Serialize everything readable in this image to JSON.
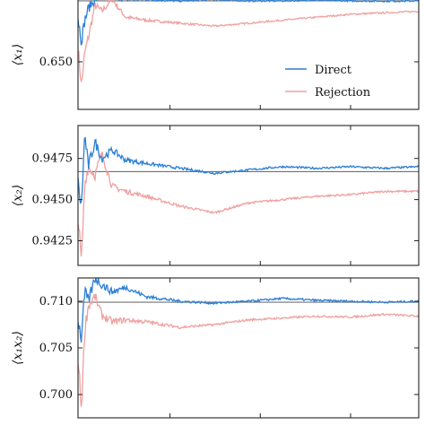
{
  "colors": {
    "direct": "#2b7fd6",
    "rejection": "#f0a0a0",
    "reference": "#707070",
    "axes": "#222222"
  },
  "legend": {
    "direct": "Direct",
    "rejection": "Rejection",
    "placement": "lower-right of top panel"
  },
  "chart_data": [
    {
      "type": "line",
      "ylabel": "⟨x₁⟩",
      "yticks": [
        {
          "v": 0.65,
          "label": "0.650"
        }
      ],
      "ylim": [
        0.634,
        0.672
      ],
      "reference_value": 0.6705,
      "x_domain": [
        0,
        1
      ],
      "series": [
        {
          "name": "Direct",
          "x": [
            0,
            0.01,
            0.02,
            0.03,
            0.05,
            0.07,
            0.1,
            0.14,
            0.2,
            0.3,
            0.4,
            0.5,
            0.6,
            0.7,
            0.8,
            0.9,
            1.0
          ],
          "values": [
            0.665,
            0.657,
            0.664,
            0.668,
            0.671,
            0.672,
            0.672,
            0.671,
            0.671,
            0.6705,
            0.671,
            0.6705,
            0.6705,
            0.6708,
            0.6705,
            0.6704,
            0.6705
          ]
        },
        {
          "name": "Rejection",
          "x": [
            0,
            0.01,
            0.02,
            0.03,
            0.05,
            0.07,
            0.1,
            0.14,
            0.2,
            0.3,
            0.4,
            0.5,
            0.6,
            0.7,
            0.8,
            0.9,
            1.0
          ],
          "values": [
            0.655,
            0.642,
            0.653,
            0.658,
            0.669,
            0.667,
            0.671,
            0.665,
            0.664,
            0.663,
            0.662,
            0.663,
            0.664,
            0.665,
            0.666,
            0.6665,
            0.667
          ]
        }
      ]
    },
    {
      "type": "line",
      "ylabel": "⟨x₂⟩",
      "yticks": [
        {
          "v": 0.9475,
          "label": "0.9475"
        },
        {
          "v": 0.945,
          "label": "0.9450"
        },
        {
          "v": 0.9425,
          "label": "0.9425"
        }
      ],
      "ylim": [
        0.941,
        0.9495
      ],
      "reference_value": 0.9467,
      "x_domain": [
        0,
        1
      ],
      "series": [
        {
          "name": "Direct",
          "x": [
            0,
            0.01,
            0.02,
            0.03,
            0.05,
            0.07,
            0.1,
            0.14,
            0.2,
            0.3,
            0.4,
            0.5,
            0.6,
            0.7,
            0.8,
            0.9,
            1.0
          ],
          "values": [
            0.946,
            0.9445,
            0.949,
            0.947,
            0.9485,
            0.9475,
            0.948,
            0.9474,
            0.9472,
            0.9469,
            0.9466,
            0.9468,
            0.947,
            0.9469,
            0.947,
            0.9469,
            0.947
          ]
        },
        {
          "name": "Rejection",
          "x": [
            0,
            0.01,
            0.02,
            0.03,
            0.05,
            0.07,
            0.1,
            0.14,
            0.2,
            0.3,
            0.4,
            0.5,
            0.6,
            0.7,
            0.8,
            0.9,
            1.0
          ],
          "values": [
            0.944,
            0.9412,
            0.946,
            0.947,
            0.9465,
            0.9478,
            0.9458,
            0.9455,
            0.9452,
            0.9446,
            0.9442,
            0.9448,
            0.945,
            0.9452,
            0.9453,
            0.9455,
            0.9455
          ]
        }
      ]
    },
    {
      "type": "line",
      "ylabel": "⟨x₁x₂⟩",
      "yticks": [
        {
          "v": 0.71,
          "label": "0.710"
        },
        {
          "v": 0.705,
          "label": "0.705"
        },
        {
          "v": 0.7,
          "label": "0.700"
        }
      ],
      "ylim": [
        0.6975,
        0.7125
      ],
      "reference_value": 0.7099,
      "x_domain": [
        0,
        1
      ],
      "series": [
        {
          "name": "Direct",
          "x": [
            0,
            0.01,
            0.02,
            0.03,
            0.05,
            0.07,
            0.1,
            0.14,
            0.2,
            0.3,
            0.4,
            0.5,
            0.6,
            0.7,
            0.8,
            0.9,
            1.0
          ],
          "values": [
            0.708,
            0.706,
            0.711,
            0.71,
            0.7125,
            0.7118,
            0.711,
            0.7115,
            0.7105,
            0.71,
            0.7098,
            0.71,
            0.7103,
            0.7101,
            0.71,
            0.7099,
            0.71
          ]
        },
        {
          "name": "Rejection",
          "x": [
            0,
            0.01,
            0.02,
            0.03,
            0.05,
            0.07,
            0.1,
            0.14,
            0.2,
            0.3,
            0.4,
            0.5,
            0.6,
            0.7,
            0.8,
            0.9,
            1.0
          ],
          "values": [
            0.704,
            0.6985,
            0.707,
            0.7095,
            0.7105,
            0.7085,
            0.7078,
            0.708,
            0.7078,
            0.7072,
            0.7075,
            0.708,
            0.7082,
            0.7084,
            0.7083,
            0.7086,
            0.7084
          ]
        }
      ]
    }
  ]
}
